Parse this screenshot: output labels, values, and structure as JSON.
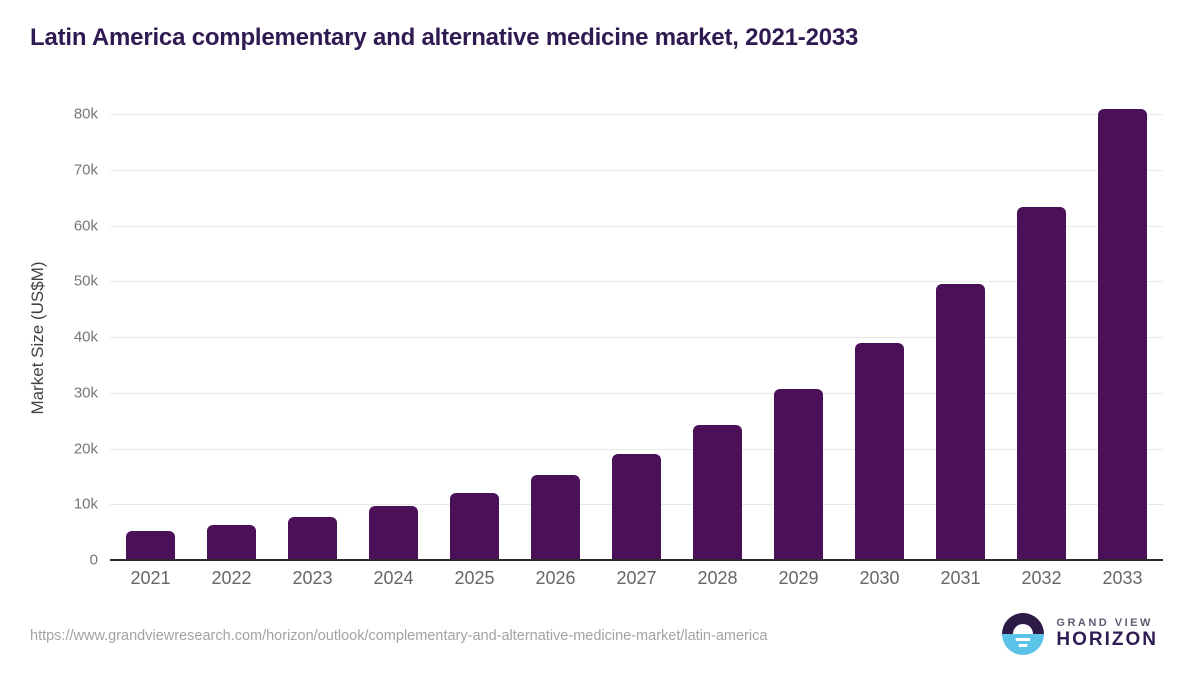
{
  "header": {
    "title": "Latin America complementary and alternative medicine market, 2021-2033"
  },
  "chart_data": {
    "type": "bar",
    "title": "Latin America complementary and alternative medicine market, 2021-2033",
    "categories": [
      "2021",
      "2022",
      "2023",
      "2024",
      "2025",
      "2026",
      "2027",
      "2028",
      "2029",
      "2030",
      "2031",
      "2032",
      "2033"
    ],
    "values": [
      5200,
      6300,
      7800,
      9600,
      12100,
      15200,
      19000,
      24200,
      30600,
      38900,
      49500,
      63300,
      80900
    ],
    "xlabel": "",
    "ylabel": "Market Size (US$M)",
    "ylim": [
      0,
      80000
    ],
    "ytick_step": 10000,
    "ytick_labels": [
      "0",
      "10k",
      "20k",
      "30k",
      "40k",
      "50k",
      "60k",
      "70k",
      "80k"
    ],
    "grid": "horizontal",
    "legend": "none",
    "bar_color": "#4a1159"
  },
  "footer": {
    "source_url": "https://www.grandviewresearch.com/horizon/outlook/complementary-and-alternative-medicine-market/latin-america",
    "logo": {
      "brand_top": "GRAND VIEW",
      "brand_bottom": "HORIZON",
      "icon_dark_color": "#2e1a47",
      "icon_blue_color": "#5bc2e8"
    }
  },
  "colors": {
    "title": "#301a52",
    "bar": "#4a1159",
    "gridline": "#e9e9e9",
    "axis_line": "#2b2b2b",
    "ytick_text": "#777777",
    "xtick_text": "#666666",
    "url_text": "#a3a3a3"
  }
}
